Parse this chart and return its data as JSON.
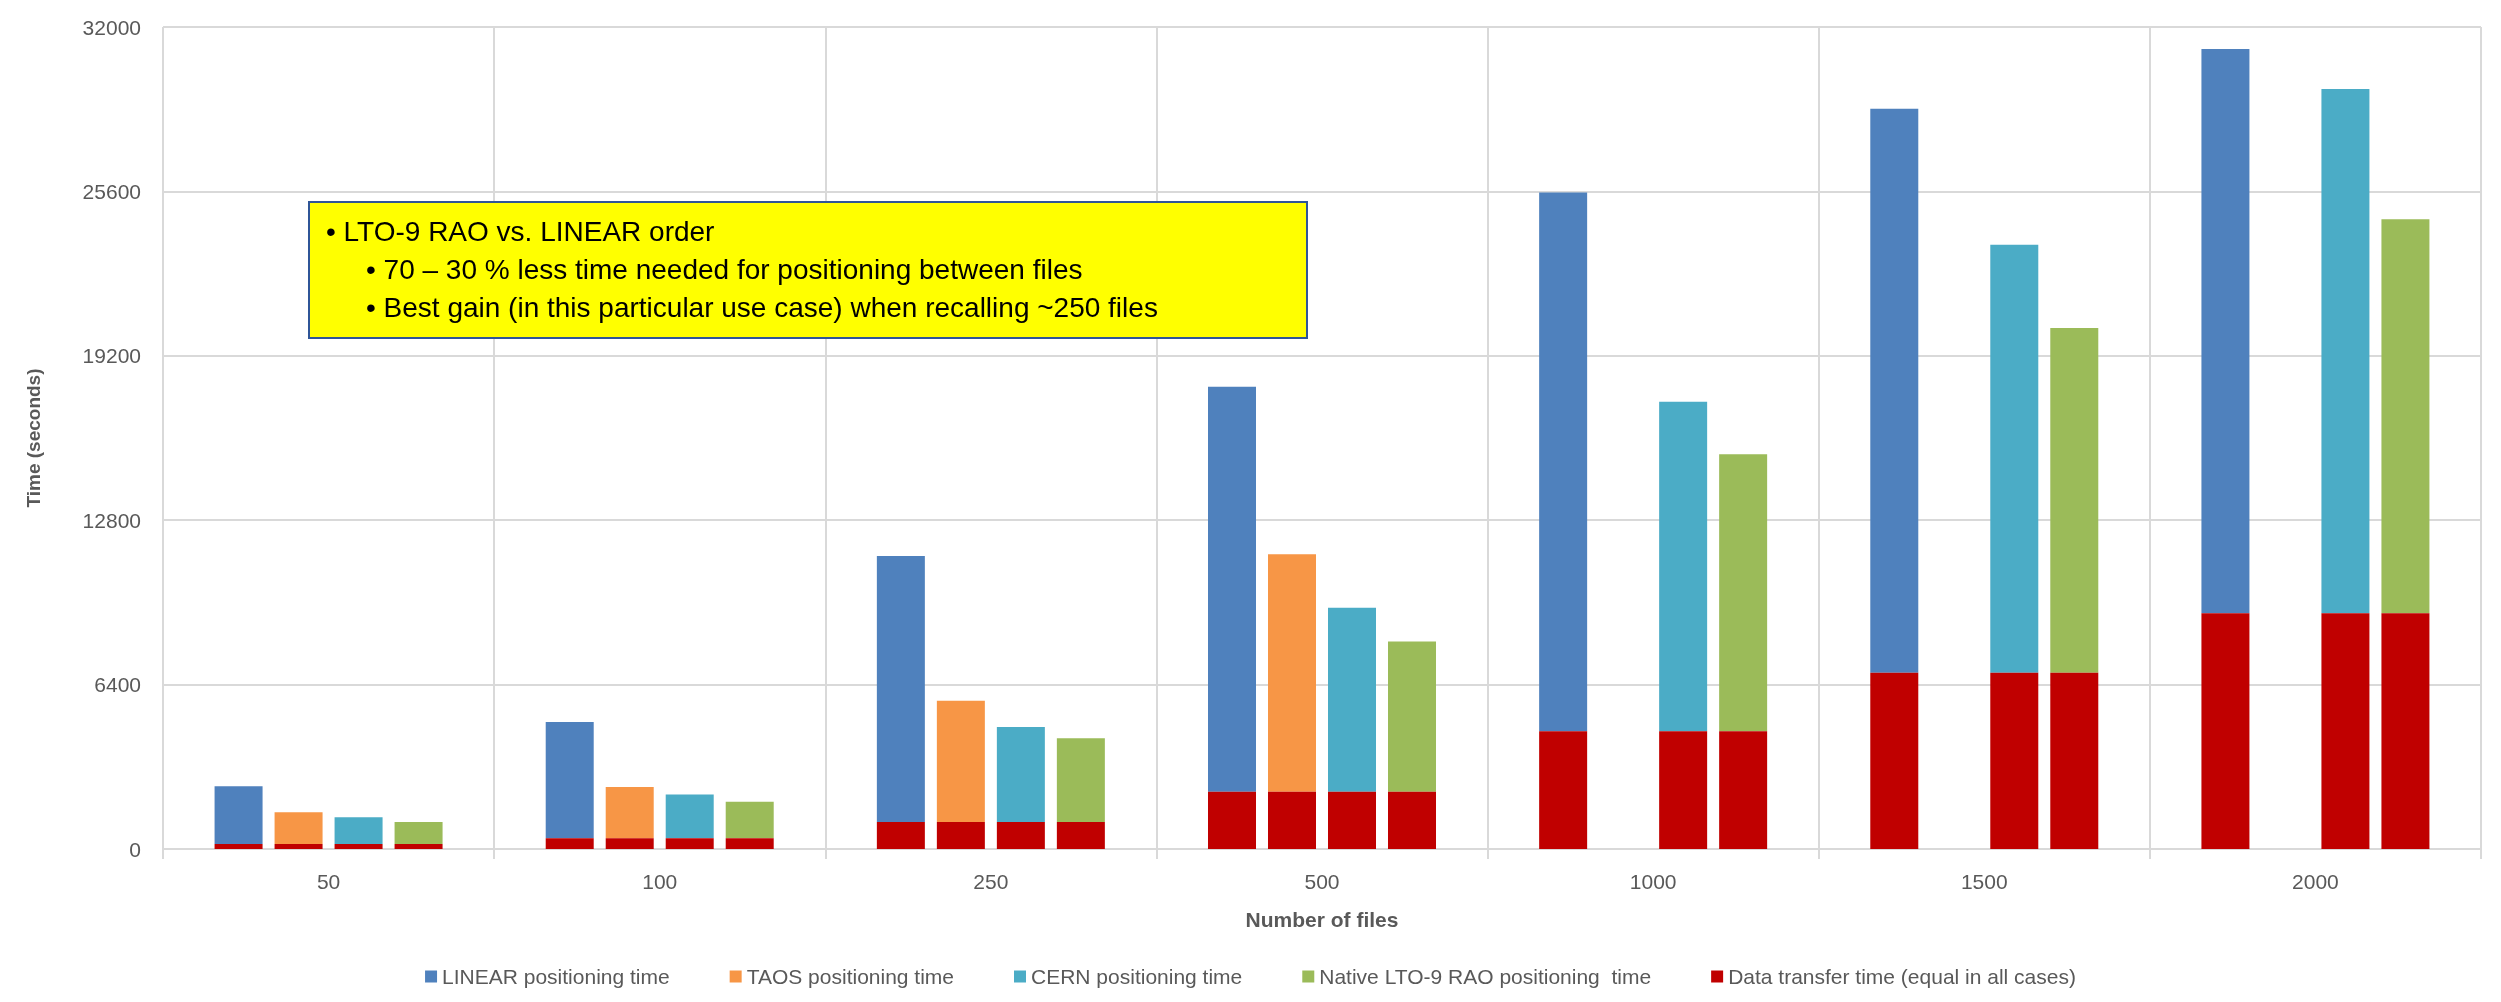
{
  "chart_data": {
    "type": "bar",
    "xlabel": "Number of files",
    "ylabel": "Time (seconds)",
    "categories": [
      "50",
      "100",
      "250",
      "500",
      "1000",
      "1500",
      "2000"
    ],
    "series": [
      {
        "name": "LINEAR positioning time",
        "color": "#4f81bd",
        "base": [
          190,
          420,
          1050,
          2230,
          4580,
          6860,
          9180
        ],
        "values": [
          2250,
          4520,
          10360,
          15770,
          20980,
          21960,
          21960
        ]
      },
      {
        "name": "TAOS positioning time",
        "color": "#f79646",
        "base": [
          190,
          420,
          1050,
          2230,
          null,
          null,
          null
        ],
        "values": [
          1240,
          1990,
          4720,
          9240,
          null,
          null,
          null
        ]
      },
      {
        "name": "CERN positioning time",
        "color": "#4bacc6",
        "base": [
          190,
          420,
          1050,
          2230,
          4580,
          6860,
          9180
        ],
        "values": [
          1050,
          1700,
          3700,
          7160,
          12830,
          16660,
          20410
        ]
      },
      {
        "name": "Native LTO-9 RAO positioning  time",
        "color": "#9bbb59",
        "base": [
          190,
          420,
          1050,
          2230,
          4580,
          6860,
          9180
        ],
        "values": [
          860,
          1420,
          3260,
          5850,
          10790,
          13420,
          15340
        ]
      },
      {
        "name": "Data transfer time (equal in all cases)",
        "color": "#c00000",
        "values": [
          190,
          420,
          1050,
          2230,
          4580,
          6860,
          9180
        ]
      },
      {
        "color": "#c00000",
        "values": [
          190,
          420,
          1050,
          2230,
          null,
          null,
          null
        ]
      },
      {
        "color": "#c00000",
        "values": [
          190,
          420,
          1050,
          2230,
          4580,
          6860,
          9180
        ]
      },
      {
        "color": "#c00000",
        "values": [
          190,
          420,
          1050,
          2230,
          4580,
          6860,
          9180
        ]
      }
    ],
    "ylim": [
      0,
      32000
    ],
    "yticks": [
      0,
      6400,
      12800,
      19200,
      25600,
      32000
    ],
    "grid": true,
    "legend": "bottom",
    "annotations": [
      "•  LTO-9 RAO vs. LINEAR order",
      "•  70 – 30 % less time needed for positioning between files",
      "•  Best gain (in this particular use case) when recalling ~250 files"
    ]
  }
}
